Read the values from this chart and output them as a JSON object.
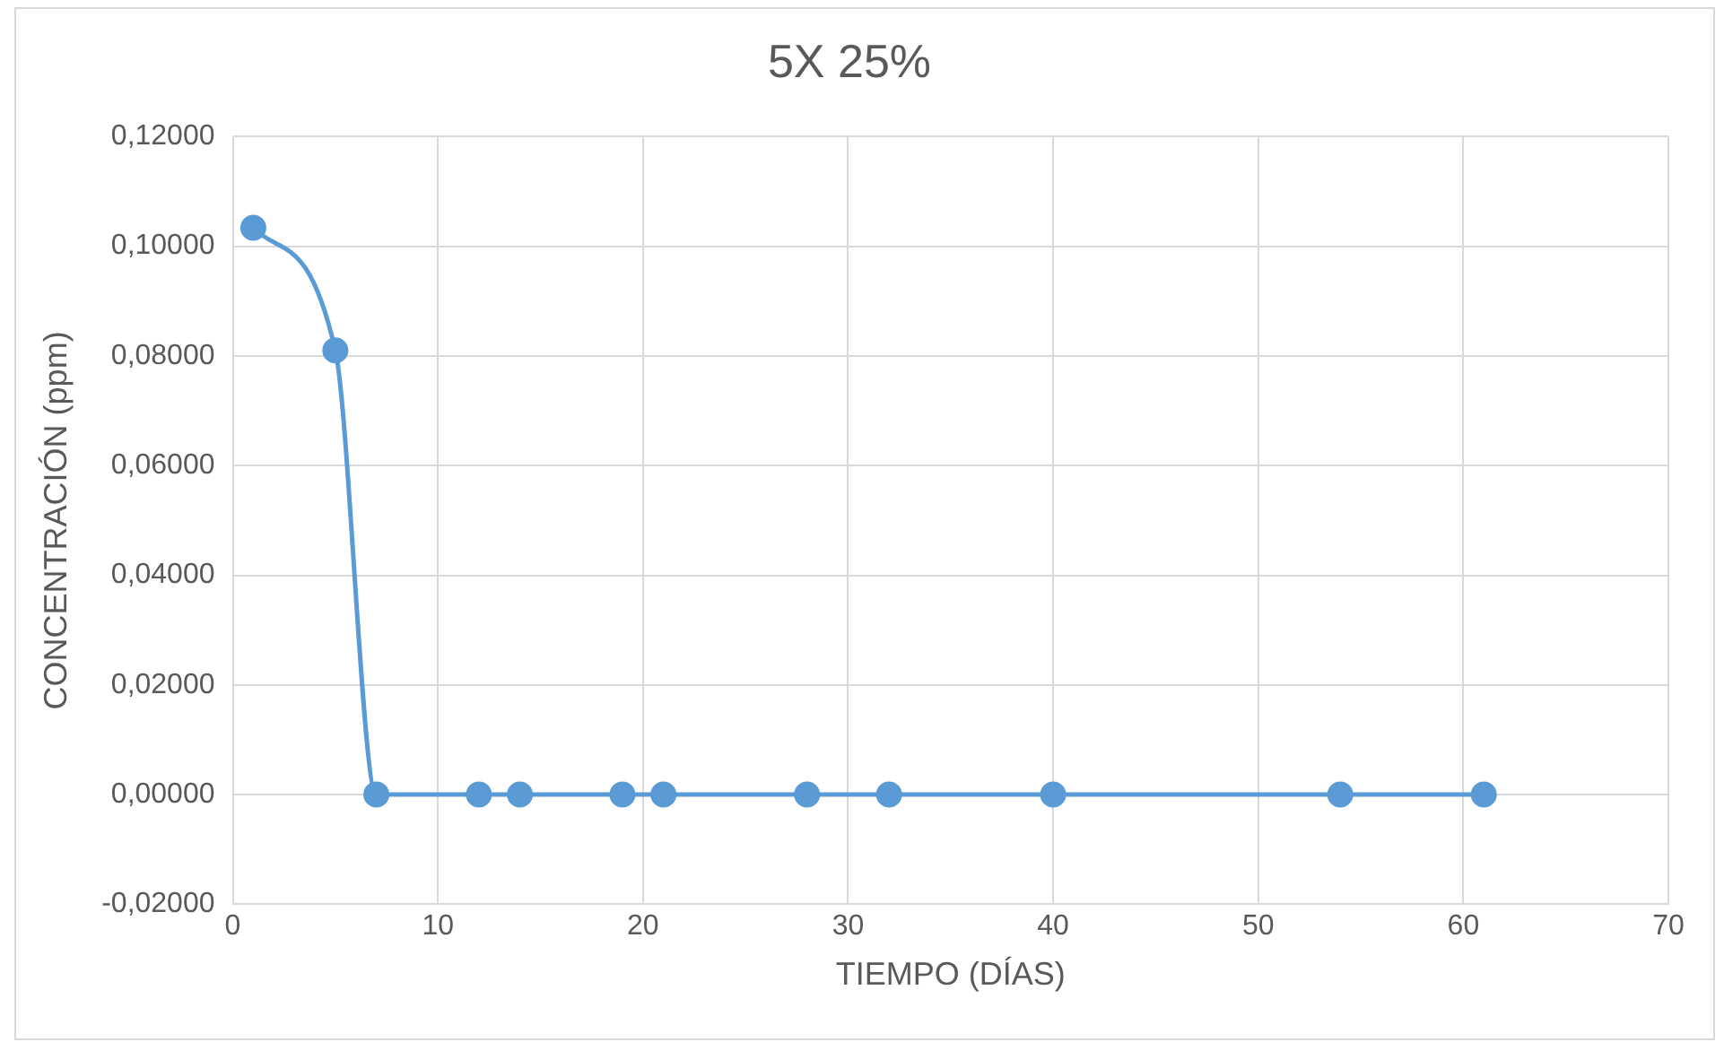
{
  "chart_data": {
    "type": "line",
    "title": "5X 25%",
    "xlabel": "TIEMPO (DÍAS)",
    "ylabel": "CONCENTRACIÓN (ppm)",
    "x": [
      1,
      5,
      7,
      12,
      14,
      19,
      21,
      28,
      32,
      40,
      54,
      61
    ],
    "series": [
      {
        "color": "#5b9bd5",
        "values": [
          0.1034,
          0.081,
          0,
          0,
          0,
          0,
          0,
          0,
          0,
          0,
          0,
          0
        ]
      }
    ],
    "xlim": [
      0,
      70
    ],
    "xticks": [
      0,
      10,
      20,
      30,
      40,
      50,
      60,
      70
    ],
    "ylim": [
      -0.02,
      0.12
    ],
    "yticks": [
      {
        "value": -0.02,
        "label": "-0,02000"
      },
      {
        "value": 0,
        "label": "0,00000"
      },
      {
        "value": 0.02,
        "label": "0,02000"
      },
      {
        "value": 0.04,
        "label": "0,04000"
      },
      {
        "value": 0.06,
        "label": "0,06000"
      },
      {
        "value": 0.08,
        "label": "0,08000"
      },
      {
        "value": 0.1,
        "label": "0,10000"
      },
      {
        "value": 0.12,
        "label": "0,12000"
      }
    ],
    "grid": true,
    "marker": "circle",
    "line_style": "solid"
  }
}
